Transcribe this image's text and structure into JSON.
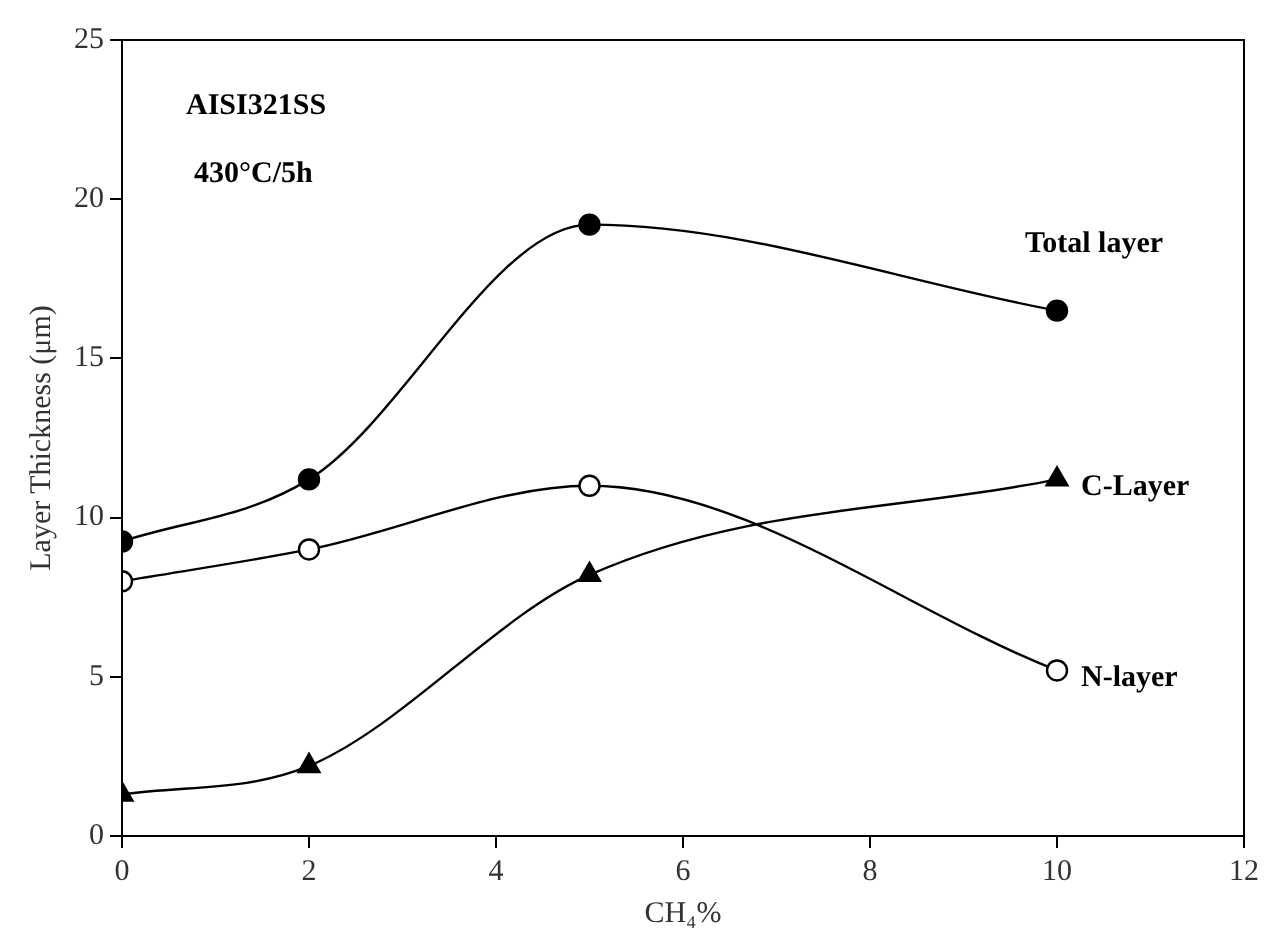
{
  "chart_data": {
    "type": "line",
    "xlabel": "CH₄%",
    "ylabel": "Layer Thickness (μm)",
    "x": [
      0,
      2,
      5,
      10
    ],
    "xlim": [
      0,
      12
    ],
    "xticks": [
      0,
      2,
      4,
      6,
      8,
      10,
      12
    ],
    "ylim": [
      0,
      25
    ],
    "yticks": [
      0,
      5,
      10,
      15,
      20,
      25
    ],
    "grid": false,
    "legend": false,
    "line_style": "solid",
    "annotations": [
      "AISI321SS",
      "430°C/5h"
    ],
    "series": [
      {
        "name": "Total layer",
        "color": "#000000",
        "marker": "circle",
        "values": [
          9.25,
          11.2,
          19.2,
          16.5
        ]
      },
      {
        "name": "N-layer",
        "color": "#000000",
        "marker": "circle",
        "values": [
          8.0,
          9.0,
          11.0,
          5.2
        ]
      },
      {
        "name": "C-Layer",
        "color": "#000000",
        "marker": "triangle",
        "values": [
          1.3,
          2.2,
          8.2,
          11.2
        ]
      }
    ]
  }
}
